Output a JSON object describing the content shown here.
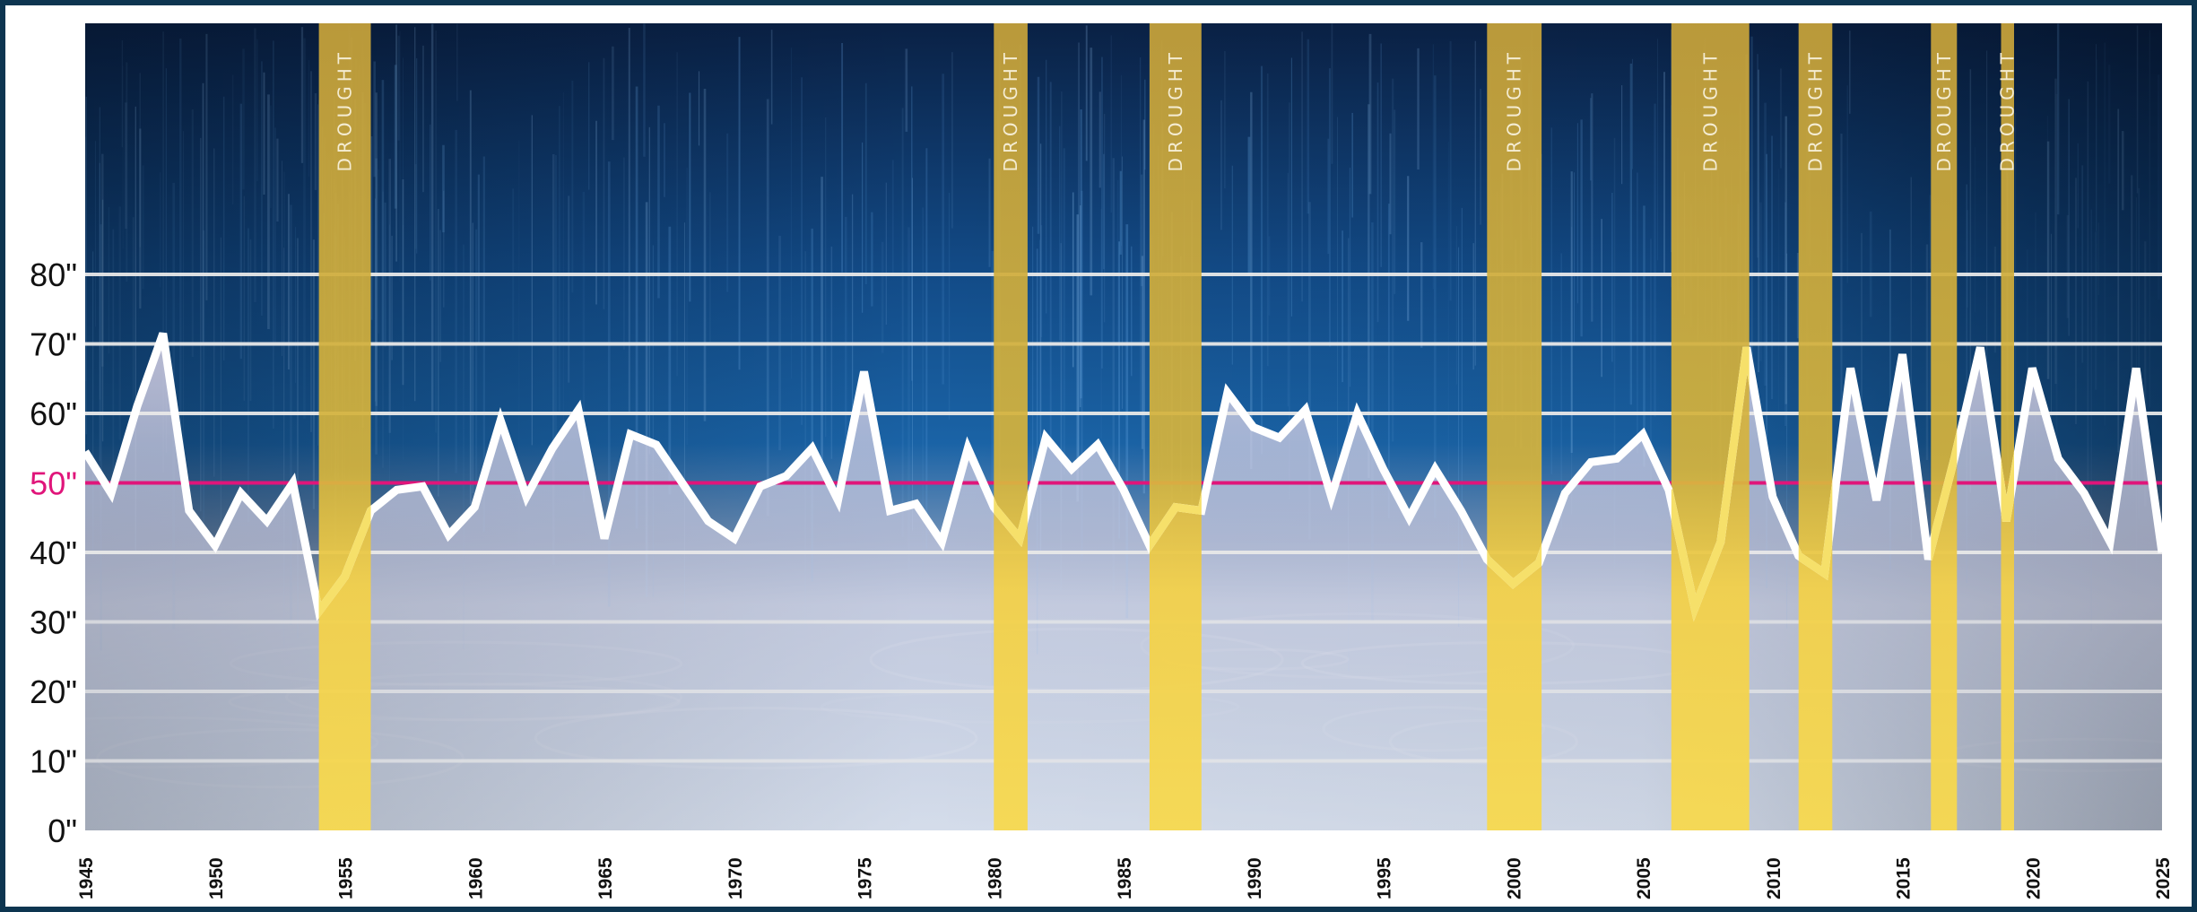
{
  "chart_data": {
    "type": "area",
    "title": "",
    "xlabel": "",
    "ylabel": "",
    "xlim": [
      1945,
      2025
    ],
    "ylim": [
      0,
      80
    ],
    "y_ticks": [
      0,
      10,
      20,
      30,
      40,
      50,
      60,
      70,
      80
    ],
    "y_tick_labels": [
      "0\"",
      "10\"",
      "20\"",
      "30\"",
      "40\"",
      "50\"",
      "60\"",
      "70\"",
      "80\""
    ],
    "x_ticks": [
      1945,
      1950,
      1955,
      1960,
      1965,
      1970,
      1975,
      1980,
      1985,
      1990,
      1995,
      2000,
      2005,
      2010,
      2015,
      2020,
      2025
    ],
    "x_tick_labels": [
      "1945",
      "1950",
      "1955",
      "1960",
      "1965",
      "1970",
      "1975",
      "1980",
      "1985",
      "1990",
      "1995",
      "2000",
      "2005",
      "2010",
      "2015",
      "2020",
      "2025"
    ],
    "grid": true,
    "reference_line": {
      "value": 50,
      "label": "50\"",
      "color": "#e0157a"
    },
    "series": [
      {
        "x": [
          1945,
          1946,
          1947,
          1948,
          1949,
          1950,
          1951,
          1952,
          1953,
          1954,
          1955,
          1956,
          1957,
          1958,
          1959,
          1960,
          1961,
          1962,
          1963,
          1964,
          1965,
          1966,
          1967,
          1968,
          1969,
          1970,
          1971,
          1972,
          1973,
          1974,
          1975,
          1976,
          1977,
          1978,
          1979,
          1980,
          1981,
          1982,
          1983,
          1984,
          1985,
          1986,
          1987,
          1988,
          1989,
          1990,
          1991,
          1992,
          1993,
          1994,
          1995,
          1996,
          1997,
          1998,
          1999,
          2000,
          2001,
          2002,
          2003,
          2004,
          2005,
          2006,
          2007,
          2008,
          2009,
          2010,
          2011,
          2012,
          2013,
          2014,
          2015,
          2016,
          2017,
          2018,
          2019,
          2020,
          2021,
          2022,
          2023,
          2024,
          2025
        ],
        "values": [
          54.5,
          48.5,
          61,
          71.5,
          46,
          41,
          48.5,
          44.5,
          50,
          31.5,
          36.5,
          46,
          49,
          49.5,
          42.5,
          46.5,
          59,
          48,
          55,
          60.5,
          42,
          57,
          55.5,
          50,
          44.5,
          42,
          49.5,
          51,
          55,
          47.5,
          66,
          46,
          47,
          41.5,
          55,
          46.5,
          42,
          56.5,
          52,
          55.5,
          49,
          41,
          46.5,
          46,
          63,
          58,
          56.5,
          60.5,
          48,
          60,
          52,
          45,
          52,
          46,
          39,
          35.5,
          38.5,
          48.5,
          53,
          53.5,
          57,
          49,
          32,
          41.5,
          69.5,
          48,
          39.5,
          37,
          66.5,
          47.5,
          68.5,
          39,
          53.5,
          69.5,
          44.5,
          66.5,
          53.5,
          48.5,
          41.5,
          66.5,
          40
        ],
        "color": "#ffffff"
      }
    ],
    "drought_periods": [
      {
        "label": "DROUGHT",
        "start": 1954.0,
        "end": 1956.0
      },
      {
        "label": "DROUGHT",
        "start": 1980.0,
        "end": 1981.3
      },
      {
        "label": "DROUGHT",
        "start": 1986.0,
        "end": 1988.0
      },
      {
        "label": "DROUGHT",
        "start": 1999.0,
        "end": 2001.1
      },
      {
        "label": "DROUGHT",
        "start": 2006.1,
        "end": 2009.1
      },
      {
        "label": "DROUGHT",
        "start": 2011.0,
        "end": 2012.3
      },
      {
        "label": "DROUGHT",
        "start": 2016.1,
        "end": 2017.1
      },
      {
        "label": "DROUGHT",
        "start": 2018.8,
        "end": 2019.3
      }
    ],
    "colors": {
      "sky_top": "#0a1f3e",
      "sky_mid": "#13518e",
      "water": "#c9d9ea",
      "drought_band": "#e8c23c",
      "line": "#ffffff",
      "gridline": "#e8e8e8"
    }
  }
}
